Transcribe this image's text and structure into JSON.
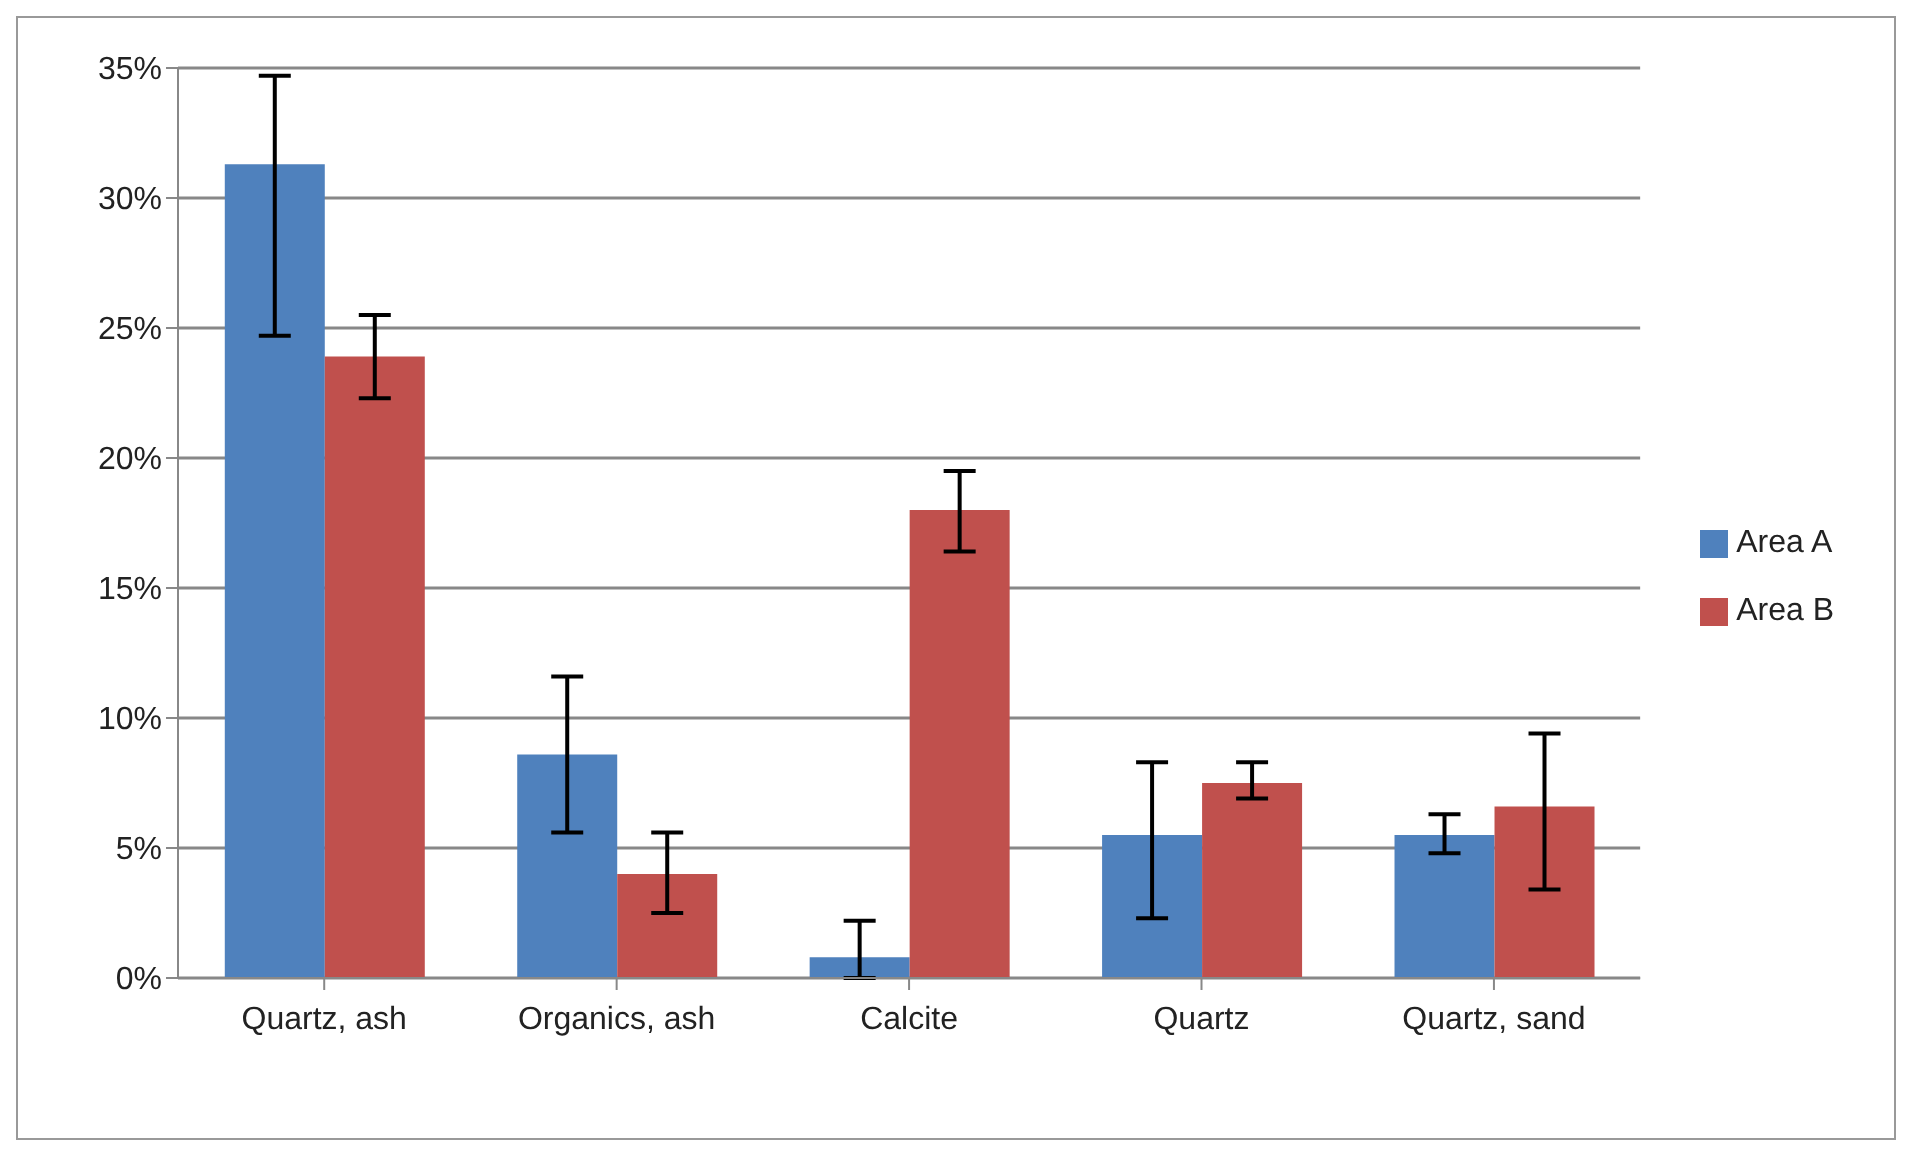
{
  "chart_data": {
    "type": "bar",
    "categories": [
      "Quartz, ash",
      "Organics, ash",
      "Calcite",
      "Quartz",
      "Quartz, sand"
    ],
    "series": [
      {
        "name": "Area A",
        "color": "#4f81bd",
        "values": [
          31.3,
          8.6,
          0.8,
          5.5,
          5.5
        ],
        "errors": [
          [
            24.7,
            34.7
          ],
          [
            5.6,
            11.6
          ],
          [
            0,
            2.2
          ],
          [
            2.3,
            8.3
          ],
          [
            4.8,
            6.3
          ]
        ]
      },
      {
        "name": "Area B",
        "color": "#c0504d",
        "values": [
          23.9,
          4.0,
          18.0,
          7.5,
          6.6
        ],
        "errors": [
          [
            22.3,
            25.5
          ],
          [
            2.5,
            5.6
          ],
          [
            16.4,
            19.5
          ],
          [
            6.9,
            8.3
          ],
          [
            3.4,
            9.4
          ]
        ]
      }
    ],
    "ylim": [
      0,
      35
    ],
    "yticks": [
      {
        "value": 0,
        "label": "0%"
      },
      {
        "value": 5,
        "label": "5%"
      },
      {
        "value": 10,
        "label": "10%"
      },
      {
        "value": 15,
        "label": "15%"
      },
      {
        "value": 20,
        "label": "20%"
      },
      {
        "value": 25,
        "label": "25%"
      },
      {
        "value": 30,
        "label": "30%"
      },
      {
        "value": 35,
        "label": "35%"
      }
    ],
    "grid": "y",
    "legend": "right"
  }
}
